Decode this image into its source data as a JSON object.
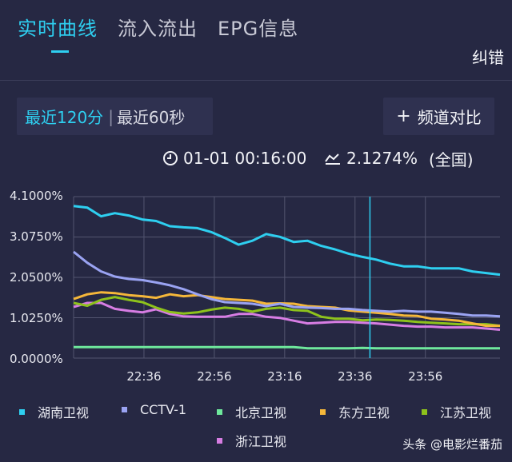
{
  "tabs": [
    {
      "label": "实时曲线"
    },
    {
      "label": "流入流出"
    },
    {
      "label": "EPG信息"
    }
  ],
  "correct_label": "纠错",
  "time_range": {
    "active": "最近120分",
    "inactive": "最近60秒"
  },
  "compare_label": "频道对比",
  "stats": {
    "time": "01-01 00:16:00",
    "rate": "2.1274%",
    "scope": "(全国)"
  },
  "icons": {
    "time": "clock-icon",
    "rate": "trend-icon",
    "compare": "plus-icon"
  },
  "watermark": "头条 @电影烂番茄",
  "chart_data": {
    "type": "line",
    "y_tick_labels": [
      "4.1000%",
      "3.0750%",
      "2.0500%",
      "1.0250%",
      "0.0000%"
    ],
    "ylim": [
      0,
      4.1
    ],
    "x_tick_labels": [
      "22:36",
      "22:56",
      "23:16",
      "23:36",
      "23:56"
    ],
    "grid": true,
    "cursor_x_fraction": 0.695,
    "legend_position": "bottom",
    "series": [
      {
        "name": "湖南卫视",
        "color": "#2ecff0",
        "values": [
          3.86,
          3.82,
          3.6,
          3.68,
          3.62,
          3.52,
          3.48,
          3.35,
          3.32,
          3.3,
          3.2,
          3.05,
          2.88,
          2.98,
          3.15,
          3.08,
          2.95,
          2.98,
          2.85,
          2.76,
          2.65,
          2.57,
          2.5,
          2.4,
          2.33,
          2.33,
          2.28,
          2.28,
          2.28,
          2.2,
          2.16,
          2.12
        ]
      },
      {
        "name": "CCTV-1",
        "color": "#9aa3f2",
        "values": [
          2.7,
          2.42,
          2.2,
          2.07,
          2.01,
          1.98,
          1.92,
          1.85,
          1.75,
          1.62,
          1.5,
          1.42,
          1.4,
          1.38,
          1.32,
          1.38,
          1.3,
          1.28,
          1.27,
          1.25,
          1.25,
          1.22,
          1.2,
          1.18,
          1.2,
          1.18,
          1.18,
          1.15,
          1.12,
          1.08,
          1.08,
          1.06
        ]
      },
      {
        "name": "北京卫视",
        "color": "#6ee89c",
        "values": [
          0.28,
          0.28,
          0.28,
          0.28,
          0.28,
          0.28,
          0.28,
          0.28,
          0.28,
          0.28,
          0.28,
          0.28,
          0.28,
          0.28,
          0.28,
          0.28,
          0.28,
          0.25,
          0.25,
          0.25,
          0.25,
          0.26,
          0.25,
          0.25,
          0.25,
          0.25,
          0.25,
          0.25,
          0.25,
          0.25,
          0.25,
          0.25
        ]
      },
      {
        "name": "东方卫视",
        "color": "#f5b73a",
        "values": [
          1.5,
          1.62,
          1.67,
          1.65,
          1.6,
          1.57,
          1.53,
          1.62,
          1.57,
          1.6,
          1.55,
          1.5,
          1.48,
          1.46,
          1.38,
          1.39,
          1.38,
          1.32,
          1.3,
          1.28,
          1.21,
          1.18,
          1.15,
          1.12,
          1.08,
          1.07,
          1.0,
          0.98,
          0.95,
          0.88,
          0.82,
          0.82
        ]
      },
      {
        "name": "江苏卫视",
        "color": "#8ec21c",
        "values": [
          1.4,
          1.33,
          1.48,
          1.55,
          1.48,
          1.42,
          1.28,
          1.17,
          1.13,
          1.16,
          1.23,
          1.28,
          1.25,
          1.18,
          1.25,
          1.28,
          1.22,
          1.2,
          1.05,
          1.0,
          1.0,
          0.96,
          0.98,
          0.97,
          0.95,
          0.92,
          0.9,
          0.88,
          0.86,
          0.86,
          0.86,
          0.82
        ]
      },
      {
        "name": "浙江卫视",
        "color": "#d77de3",
        "values": [
          1.3,
          1.4,
          1.4,
          1.25,
          1.2,
          1.16,
          1.24,
          1.12,
          1.06,
          1.05,
          1.05,
          1.05,
          1.12,
          1.12,
          1.05,
          1.02,
          0.95,
          0.88,
          0.9,
          0.92,
          0.92,
          0.9,
          0.88,
          0.85,
          0.82,
          0.8,
          0.8,
          0.78,
          0.78,
          0.78,
          0.75,
          0.72
        ]
      }
    ]
  }
}
